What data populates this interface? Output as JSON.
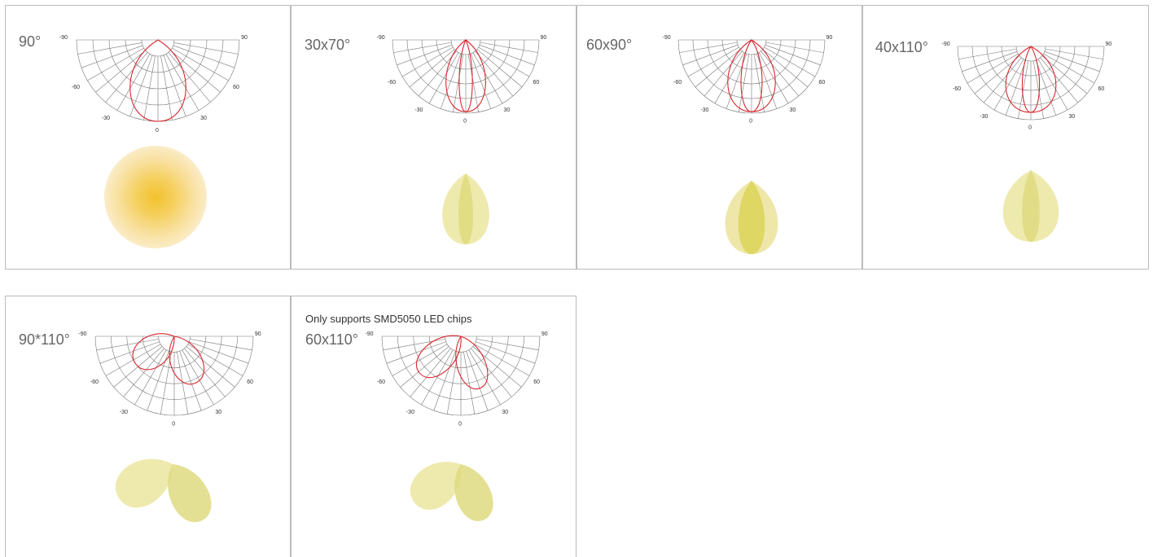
{
  "cards": [
    {
      "label": "90°",
      "polar_labels": [
        "-90",
        "90",
        "-60",
        "60",
        "-30",
        "30",
        "0"
      ]
    },
    {
      "label": "30x70°",
      "polar_labels": [
        "-90",
        "90",
        "-60",
        "60",
        "-30",
        "30",
        "0"
      ]
    },
    {
      "label": "60x90°",
      "polar_labels": [
        "-90",
        "90",
        "-60",
        "60",
        "-30",
        "30",
        "0"
      ]
    },
    {
      "label": "40x110°",
      "polar_labels": [
        "-90",
        "90",
        "-60",
        "60",
        "-30",
        "30",
        "0"
      ]
    },
    {
      "label": "90*110°",
      "polar_labels": [
        "-90",
        "90",
        "-60",
        "60",
        "-30",
        "30",
        "0"
      ]
    },
    {
      "note": "Only supports SMD5050 LED chips",
      "label": "60x110°",
      "polar_labels": [
        "-90",
        "90",
        "-60",
        "60",
        "-30",
        "30",
        "0"
      ]
    }
  ]
}
